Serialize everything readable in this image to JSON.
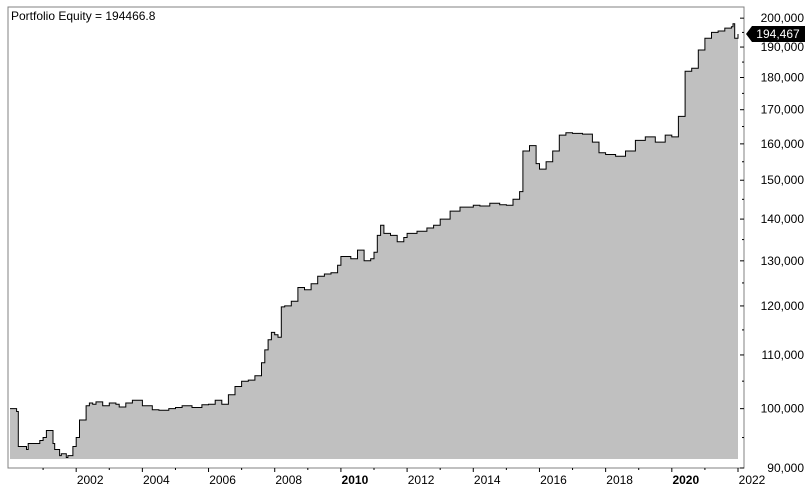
{
  "chart_data": {
    "type": "area",
    "title": "Portfolio Equity = 194466.8",
    "last_value_label": "194,467",
    "last_value": 194466.8,
    "xlabel": "",
    "ylabel": "",
    "xlim": [
      2000.0,
      2022.0
    ],
    "ylim": [
      90000,
      204000
    ],
    "y_scale": "log",
    "grid": false,
    "fill_color": "#c0c0c0",
    "line_color": "#000000",
    "x_ticks": [
      {
        "label": "2002",
        "value": 2002,
        "bold": false
      },
      {
        "label": "2004",
        "value": 2004,
        "bold": false
      },
      {
        "label": "2006",
        "value": 2006,
        "bold": false
      },
      {
        "label": "2008",
        "value": 2008,
        "bold": false
      },
      {
        "label": "2010",
        "value": 2010,
        "bold": true
      },
      {
        "label": "2012",
        "value": 2012,
        "bold": false
      },
      {
        "label": "2014",
        "value": 2014,
        "bold": false
      },
      {
        "label": "2016",
        "value": 2016,
        "bold": false
      },
      {
        "label": "2018",
        "value": 2018,
        "bold": false
      },
      {
        "label": "2020",
        "value": 2020,
        "bold": true
      },
      {
        "label": "2022",
        "value": 2022,
        "bold": false
      }
    ],
    "y_ticks": [
      {
        "label": "200,000",
        "value": 200000
      },
      {
        "label": "190,000",
        "value": 190000
      },
      {
        "label": "180,000",
        "value": 180000
      },
      {
        "label": "170,000",
        "value": 170000
      },
      {
        "label": "160,000",
        "value": 160000
      },
      {
        "label": "150,000",
        "value": 150000
      },
      {
        "label": "140,000",
        "value": 140000
      },
      {
        "label": "130,000",
        "value": 130000
      },
      {
        "label": "120,000",
        "value": 120000
      },
      {
        "label": "110,000",
        "value": 110000
      },
      {
        "label": "100,000",
        "value": 100000
      },
      {
        "label": "90,000",
        "value": 90000
      }
    ],
    "series": [
      {
        "x": [
          2000.0,
          2000.2,
          2000.25,
          2000.5,
          2000.55,
          2000.9,
          2001.0,
          2001.1,
          2001.3,
          2001.35,
          2001.5,
          2001.55,
          2001.7,
          2001.75,
          2001.9,
          2002.0,
          2002.1,
          2002.3,
          2002.4,
          2002.5,
          2002.6,
          2002.8,
          2003.0,
          2003.2,
          2003.3,
          2003.5,
          2003.7,
          2004.0,
          2004.3,
          2004.5,
          2004.8,
          2005.0,
          2005.2,
          2005.5,
          2005.8,
          2006.0,
          2006.2,
          2006.4,
          2006.6,
          2006.8,
          2007.0,
          2007.2,
          2007.4,
          2007.6,
          2007.7,
          2007.8,
          2007.9,
          2008.0,
          2008.1,
          2008.2,
          2008.3,
          2008.5,
          2008.7,
          2008.9,
          2009.1,
          2009.3,
          2009.5,
          2009.7,
          2009.9,
          2010.0,
          2010.3,
          2010.5,
          2010.7,
          2010.9,
          2011.0,
          2011.1,
          2011.2,
          2011.3,
          2011.5,
          2011.7,
          2011.9,
          2012.0,
          2012.3,
          2012.6,
          2012.8,
          2013.0,
          2013.3,
          2013.6,
          2014.0,
          2014.2,
          2014.5,
          2014.8,
          2015.0,
          2015.2,
          2015.4,
          2015.5,
          2015.7,
          2015.9,
          2016.0,
          2016.2,
          2016.4,
          2016.6,
          2016.8,
          2017.0,
          2017.3,
          2017.6,
          2017.8,
          2018.0,
          2018.3,
          2018.6,
          2018.9,
          2019.2,
          2019.5,
          2019.8,
          2020.0,
          2020.2,
          2020.4,
          2020.6,
          2020.8,
          2021.0,
          2021.2,
          2021.4,
          2021.6,
          2021.8,
          2021.85,
          2021.9,
          2022.0
        ],
        "y": [
          100000,
          99500,
          93500,
          93000,
          94000,
          94500,
          95000,
          96200,
          94000,
          93000,
          92000,
          92300,
          91700,
          92000,
          93500,
          95000,
          98000,
          100500,
          101000,
          100800,
          101200,
          100500,
          101000,
          100800,
          100300,
          101000,
          101500,
          100500,
          99800,
          99700,
          100000,
          100200,
          100500,
          100200,
          100700,
          100800,
          101500,
          100800,
          102500,
          104000,
          105000,
          105200,
          106000,
          108500,
          111000,
          113000,
          114500,
          114000,
          113500,
          119800,
          120000,
          121000,
          124000,
          123500,
          124800,
          126500,
          127000,
          127300,
          129000,
          131000,
          130500,
          132500,
          130000,
          130500,
          132000,
          136000,
          138500,
          136500,
          136000,
          134500,
          135500,
          136500,
          137000,
          137800,
          138500,
          140000,
          142000,
          143000,
          143500,
          143300,
          144000,
          143600,
          143500,
          145000,
          147000,
          158000,
          159500,
          154500,
          153000,
          155000,
          158000,
          162500,
          163200,
          163000,
          162800,
          160500,
          157500,
          157000,
          156500,
          158000,
          161000,
          162000,
          160500,
          162500,
          162000,
          168000,
          182000,
          183000,
          189000,
          193000,
          195000,
          195500,
          196500,
          197000,
          198000,
          193000,
          194466.8
        ]
      }
    ]
  }
}
